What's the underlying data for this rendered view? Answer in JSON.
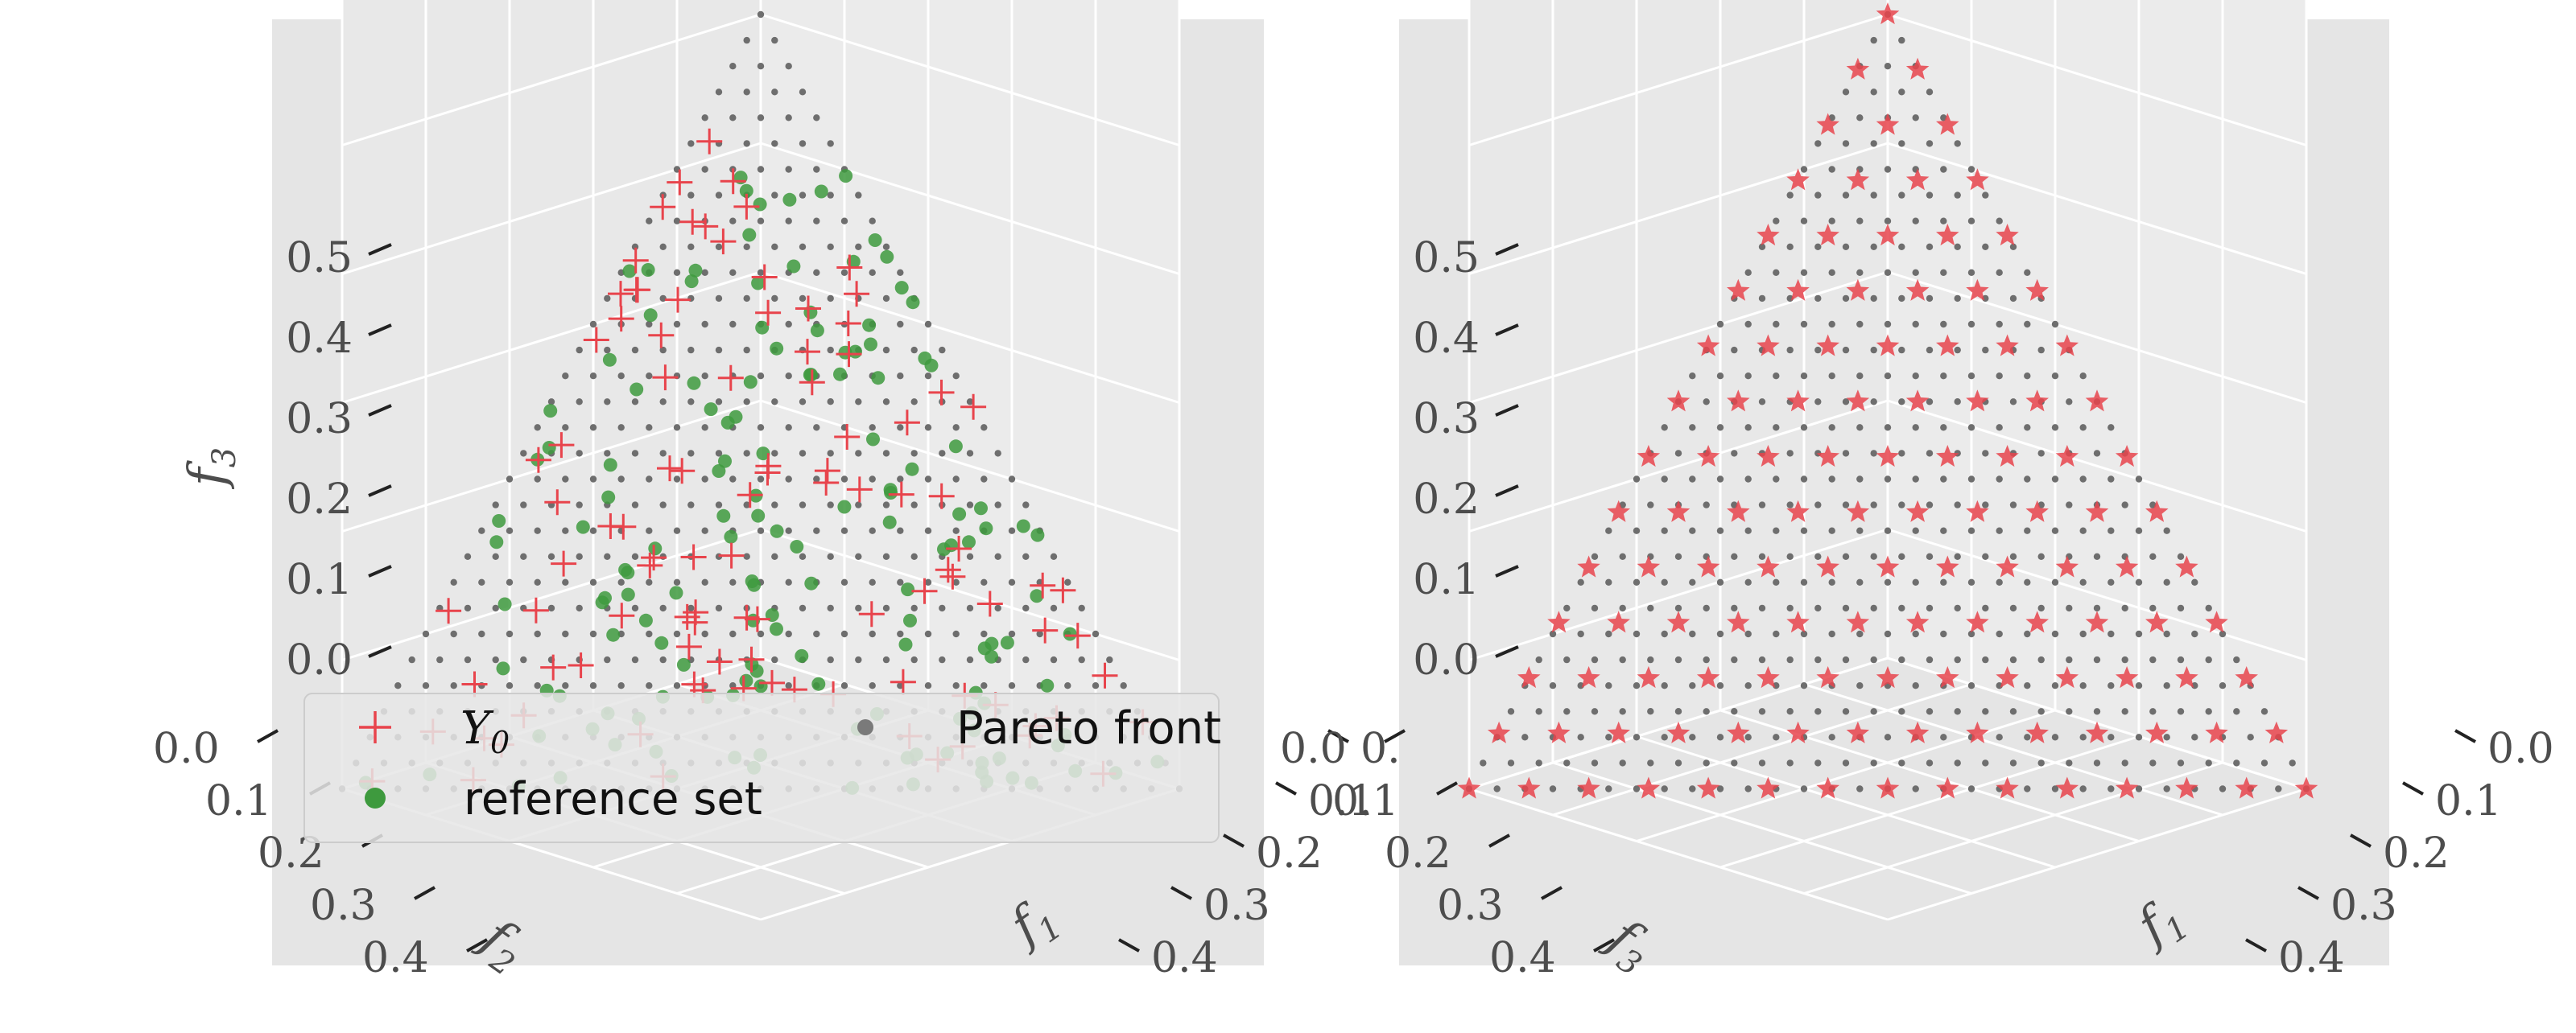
{
  "chart_data": [
    {
      "type": "scatter",
      "panel": "left",
      "axes": {
        "x": {
          "name": "f1",
          "label": "f_1",
          "ticks": [
            "0.0",
            "0.1",
            "0.2",
            "0.3",
            "0.4"
          ],
          "ylim": [
            0,
            0.5
          ]
        },
        "y": {
          "name": "f2",
          "label": "f_2",
          "ticks": [
            "0.0",
            "0.1",
            "0.2",
            "0.3",
            "0.4"
          ],
          "ylim": [
            0,
            0.5
          ]
        },
        "z": {
          "name": "f3",
          "label": "f_3",
          "ticks": [
            "0.0",
            "0.1",
            "0.2",
            "0.3",
            "0.4",
            "0.5"
          ],
          "ylim": [
            0,
            0.5
          ]
        }
      },
      "grid": true,
      "legend": {
        "placement": "lower-center",
        "entries": [
          {
            "id": "y0",
            "label": "Y",
            "subscript": "0",
            "marker": "plus",
            "color": "#e8444c"
          },
          {
            "id": "pareto",
            "label": "Pareto front",
            "marker": "dot",
            "color": "#7a7a7a"
          },
          {
            "id": "ref",
            "label": "reference set",
            "marker": "circle",
            "color": "#3e9a3e"
          }
        ]
      },
      "series": [
        {
          "id": "pareto",
          "name": "Pareto front",
          "description": "simplex grid f1+f2+f3=0.5, step 1/60 (31 levels)",
          "color": "#6e6e6e"
        },
        {
          "id": "ref",
          "name": "reference set",
          "description": "random sample of ~150 points on the front",
          "color": "#3e9a3e"
        },
        {
          "id": "y0",
          "name": "Y_0",
          "description": "random sample of ~105 points near the front",
          "color": "#e8444c"
        }
      ]
    },
    {
      "type": "scatter",
      "panel": "right",
      "axes": {
        "x": {
          "name": "f1",
          "label": "f_1",
          "ticks": [
            "0.0",
            "0.1",
            "0.2",
            "0.3",
            "0.4"
          ],
          "ylim": [
            0,
            0.5
          ]
        },
        "y": {
          "name": "f3",
          "label": "f_3",
          "ticks": [
            "0.0",
            "0.1",
            "0.2",
            "0.3",
            "0.4"
          ],
          "ylim": [
            0,
            0.5
          ]
        },
        "z": {
          "name": "f3",
          "label": "",
          "ticks": [
            "0.0",
            "0.1",
            "0.2",
            "0.3",
            "0.4",
            "0.5"
          ],
          "ylim": [
            0,
            0.5
          ]
        }
      },
      "grid": true,
      "series": [
        {
          "id": "pareto",
          "name": "Pareto front",
          "description": "simplex grid f1+f2+f3=0.5, step 1/60",
          "color": "#6e6e6e"
        },
        {
          "id": "solution",
          "name": "",
          "marker": "star",
          "description": "uniform simplex grid, 14 divisions (120 points)",
          "color": "#e8444c"
        }
      ]
    }
  ]
}
